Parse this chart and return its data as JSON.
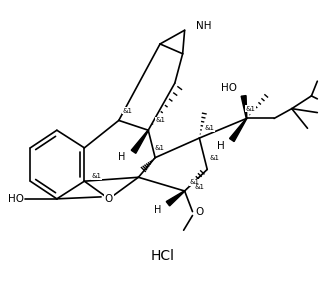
{
  "bg": "#ffffff",
  "figsize": [
    3.26,
    2.82
  ],
  "dpi": 100,
  "lw": 1.2,
  "lw_bold": 2.8,
  "hcl_text": "HCl",
  "ho_text": "HO",
  "nh_text": "NH",
  "o_text": "O",
  "h_text": "H",
  "and1": "&1"
}
